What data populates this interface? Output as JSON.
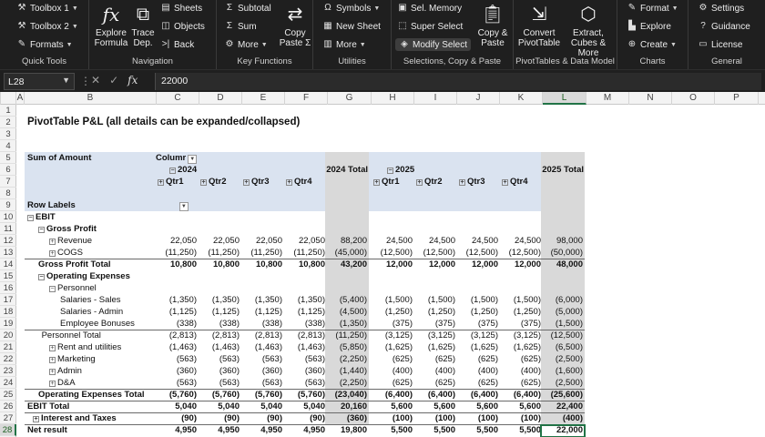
{
  "ribbon": {
    "quick_tools": {
      "label": "Quick Tools",
      "toolbox1": "Toolbox 1",
      "toolbox2": "Toolbox 2",
      "formats": "Formats"
    },
    "navigation": {
      "label": "Navigation",
      "explore_formula": "Explore Formula",
      "trace_dep": "Trace Dep.",
      "sheets": "Sheets",
      "objects": "Objects",
      "back": "Back"
    },
    "key_functions": {
      "label": "Key Functions",
      "subtotal": "Subtotal",
      "sum": "Sum",
      "more": "More",
      "copy_paste": "Copy Paste Σ"
    },
    "utilities": {
      "label": "Utilities",
      "symbols": "Symbols",
      "new_sheet": "New Sheet",
      "more": "More"
    },
    "selections": {
      "label": "Selections, Copy & Paste",
      "sel_memory": "Sel. Memory",
      "super_select": "Super Select",
      "modify_select": "Modify Select",
      "copy_paste": "Copy & Paste"
    },
    "pivot": {
      "label": "PivotTables & Data Model",
      "convert_pivot": "Convert PivotTable",
      "extract_cubes": "Extract, Cubes & More"
    },
    "charts": {
      "label": "Charts",
      "format": "Format",
      "explore": "Explore",
      "create": "Create"
    },
    "general": {
      "label": "General",
      "settings": "Settings",
      "guidance": "Guidance",
      "license": "License"
    }
  },
  "formula_bar": {
    "name_box": "L28",
    "value": "22000"
  },
  "columns": [
    "A",
    "B",
    "C",
    "D",
    "E",
    "F",
    "G",
    "H",
    "I",
    "J",
    "K",
    "L",
    "M",
    "N",
    "O",
    "P"
  ],
  "selected_column": "L",
  "selected_row": "28",
  "rows": [
    "1",
    "2",
    "3",
    "4",
    "5",
    "6",
    "7",
    "8",
    "9",
    "10",
    "11",
    "12",
    "13",
    "14",
    "15",
    "16",
    "17",
    "18",
    "19",
    "20",
    "21",
    "22",
    "23",
    "24",
    "25",
    "26",
    "27",
    "28"
  ],
  "sheet": {
    "title": "PivotTable P&L (all details can be expanded/collapsed)",
    "sum_of_amount": "Sum of Amount",
    "column_labels": "Columr",
    "row_labels": "Row Labels",
    "year_2024": "2024",
    "year_2025": "2025",
    "total_2024": "2024 Total",
    "total_2025": "2025 Total",
    "quarters": [
      "Qtr1",
      "Qtr2",
      "Qtr3",
      "Qtr4"
    ],
    "lines": [
      {
        "label": "EBIT",
        "values": []
      },
      {
        "label": "Gross Profit",
        "values": []
      },
      {
        "label": "Revenue",
        "values": [
          "22,050",
          "22,050",
          "22,050",
          "22,050",
          "88,200",
          "24,500",
          "24,500",
          "24,500",
          "24,500",
          "98,000"
        ]
      },
      {
        "label": "COGS",
        "values": [
          "(11,250)",
          "(11,250)",
          "(11,250)",
          "(11,250)",
          "(45,000)",
          "(12,500)",
          "(12,500)",
          "(12,500)",
          "(12,500)",
          "(50,000)"
        ]
      },
      {
        "label": "Gross Profit Total",
        "values": [
          "10,800",
          "10,800",
          "10,800",
          "10,800",
          "43,200",
          "12,000",
          "12,000",
          "12,000",
          "12,000",
          "48,000"
        ]
      },
      {
        "label": "Operating Expenses",
        "values": []
      },
      {
        "label": "Personnel",
        "values": []
      },
      {
        "label": "Salaries - Sales",
        "values": [
          "(1,350)",
          "(1,350)",
          "(1,350)",
          "(1,350)",
          "(5,400)",
          "(1,500)",
          "(1,500)",
          "(1,500)",
          "(1,500)",
          "(6,000)"
        ]
      },
      {
        "label": "Salaries - Admin",
        "values": [
          "(1,125)",
          "(1,125)",
          "(1,125)",
          "(1,125)",
          "(4,500)",
          "(1,250)",
          "(1,250)",
          "(1,250)",
          "(1,250)",
          "(5,000)"
        ]
      },
      {
        "label": "Employee Bonuses",
        "values": [
          "(338)",
          "(338)",
          "(338)",
          "(338)",
          "(1,350)",
          "(375)",
          "(375)",
          "(375)",
          "(375)",
          "(1,500)"
        ]
      },
      {
        "label": "Personnel Total",
        "values": [
          "(2,813)",
          "(2,813)",
          "(2,813)",
          "(2,813)",
          "(11,250)",
          "(3,125)",
          "(3,125)",
          "(3,125)",
          "(3,125)",
          "(12,500)"
        ]
      },
      {
        "label": "Rent and utilities",
        "values": [
          "(1,463)",
          "(1,463)",
          "(1,463)",
          "(1,463)",
          "(5,850)",
          "(1,625)",
          "(1,625)",
          "(1,625)",
          "(1,625)",
          "(6,500)"
        ]
      },
      {
        "label": "Marketing",
        "values": [
          "(563)",
          "(563)",
          "(563)",
          "(563)",
          "(2,250)",
          "(625)",
          "(625)",
          "(625)",
          "(625)",
          "(2,500)"
        ]
      },
      {
        "label": "Admin",
        "values": [
          "(360)",
          "(360)",
          "(360)",
          "(360)",
          "(1,440)",
          "(400)",
          "(400)",
          "(400)",
          "(400)",
          "(1,600)"
        ]
      },
      {
        "label": "D&A",
        "values": [
          "(563)",
          "(563)",
          "(563)",
          "(563)",
          "(2,250)",
          "(625)",
          "(625)",
          "(625)",
          "(625)",
          "(2,500)"
        ]
      },
      {
        "label": "Operating Expenses Total",
        "values": [
          "(5,760)",
          "(5,760)",
          "(5,760)",
          "(5,760)",
          "(23,040)",
          "(6,400)",
          "(6,400)",
          "(6,400)",
          "(6,400)",
          "(25,600)"
        ]
      },
      {
        "label": "EBIT Total",
        "values": [
          "5,040",
          "5,040",
          "5,040",
          "5,040",
          "20,160",
          "5,600",
          "5,600",
          "5,600",
          "5,600",
          "22,400"
        ]
      },
      {
        "label": "Interest and Taxes",
        "values": [
          "(90)",
          "(90)",
          "(90)",
          "(90)",
          "(360)",
          "(100)",
          "(100)",
          "(100)",
          "(100)",
          "(400)"
        ]
      },
      {
        "label": "Net result",
        "values": [
          "4,950",
          "4,950",
          "4,950",
          "4,950",
          "19,800",
          "5,500",
          "5,500",
          "5,500",
          "5,500",
          "22,000"
        ]
      }
    ]
  },
  "colors": {
    "ribbon_bg": "#1f1f1f",
    "pivot_header": "#dae3f0",
    "total_column": "#d9d9d9",
    "selection": "#217346"
  }
}
